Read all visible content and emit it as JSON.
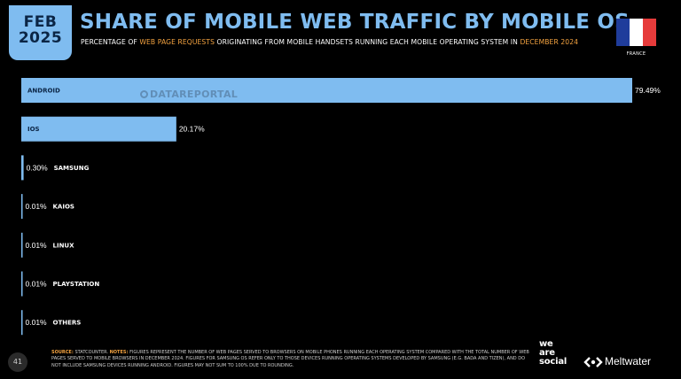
{
  "badge": {
    "month": "FEB",
    "year": "2025"
  },
  "header": {
    "title": "SHARE OF MOBILE WEB TRAFFIC BY MOBILE OS",
    "subtitle_pre": "PERCENTAGE OF ",
    "subtitle_hl1": "WEB PAGE REQUESTS",
    "subtitle_mid": " ORIGINATING FROM MOBILE HANDSETS RUNNING EACH MOBILE OPERATING SYSTEM IN ",
    "subtitle_hl2": "DECEMBER 2024"
  },
  "flag": {
    "label": "FRANCE",
    "colors": [
      "#1f3c9b",
      "#ffffff",
      "#e63b3b"
    ]
  },
  "watermark": "DATAREPORTAL",
  "colors": {
    "bar": "#7fbcf0",
    "accent": "#f4a340",
    "background": "#000000"
  },
  "chart_data": {
    "type": "bar",
    "orientation": "horizontal",
    "title": "SHARE OF MOBILE WEB TRAFFIC BY MOBILE OS",
    "categories": [
      "ANDROID",
      "IOS",
      "SAMSUNG",
      "KAIOS",
      "LINUX",
      "PLAYSTATION",
      "OTHERS"
    ],
    "values": [
      79.49,
      20.17,
      0.3,
      0.01,
      0.01,
      0.01,
      0.01
    ],
    "value_labels": [
      "79.49%",
      "20.17%",
      "0.30%",
      "0.01%",
      "0.01%",
      "0.01%",
      "0.01%"
    ],
    "xlim": [
      0,
      79.49
    ],
    "grid": false,
    "legend": "none"
  },
  "footer": {
    "source_label": "SOURCE:",
    "source": " STATCOUNTER. ",
    "notes_label": "NOTES:",
    "notes": " FIGURES REPRESENT THE NUMBER OF WEB PAGES SERVED TO BROWSERS ON MOBILE PHONES RUNNING EACH OPERATING SYSTEM COMPARED WITH THE TOTAL NUMBER OF WEB PAGES SERVED TO MOBILE BROWSERS IN DECEMBER 2024. FIGURES FOR SAMSUNG OS REFER ONLY TO THOSE DEVICES RUNNING OPERATING SYSTEMS DEVELOPED BY SAMSUNG (E.G. BADA AND TIZEN), AND DO NOT INCLUDE SAMSUNG DEVICES RUNNING ANDROID. FIGURES MAY NOT SUM TO 100% DUE TO ROUNDING."
  },
  "page_number": "41",
  "brand": {
    "was_line1": "we",
    "was_line2": "are",
    "was_line3": "social",
    "meltwater": "Meltwater"
  }
}
